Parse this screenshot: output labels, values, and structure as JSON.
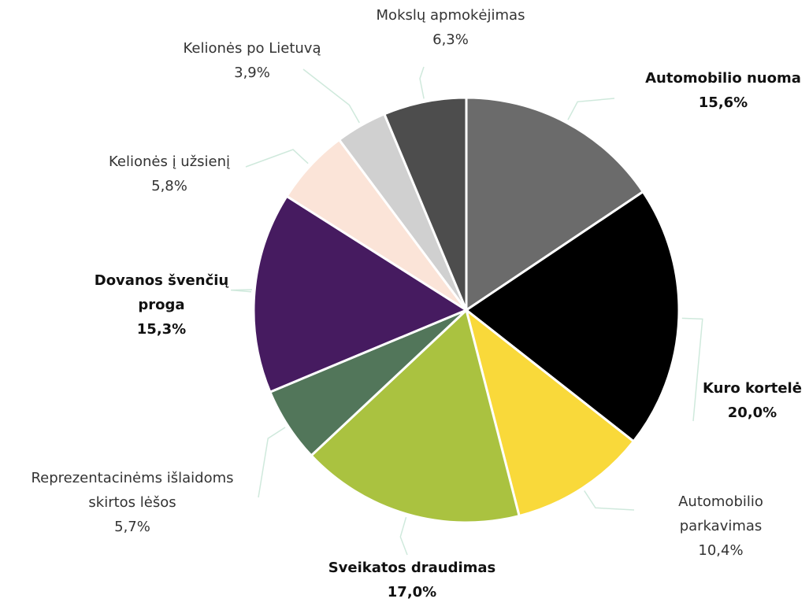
{
  "chart_data": {
    "type": "pie",
    "categories": [
      "Automobilio nuoma",
      "Kuro kortelė",
      "Automobilio parkavimas",
      "Sveikatos draudimas",
      "Reprezentacinėms išlaidoms skirtos lėšos",
      "Dovanos švenčių proga",
      "Kelionės į užsienį",
      "Kelionės po Lietuvą",
      "Mokslų apmokėjimas"
    ],
    "values": [
      15.6,
      20.0,
      10.4,
      17.0,
      5.7,
      15.3,
      5.8,
      3.9,
      6.3
    ],
    "value_labels": [
      "15,6%",
      "20,0%",
      "10,4%",
      "17,0%",
      "5,7%",
      "15,3%",
      "5,8%",
      "3,9%",
      "6,3%"
    ],
    "colors": [
      "#6b6b6b",
      "#000000",
      "#f9d93a",
      "#aac240",
      "#52765a",
      "#461b60",
      "#fbe4d8",
      "#d0d0d0",
      "#4d4d4d"
    ],
    "bold": [
      true,
      true,
      false,
      true,
      false,
      true,
      false,
      false,
      false
    ]
  }
}
